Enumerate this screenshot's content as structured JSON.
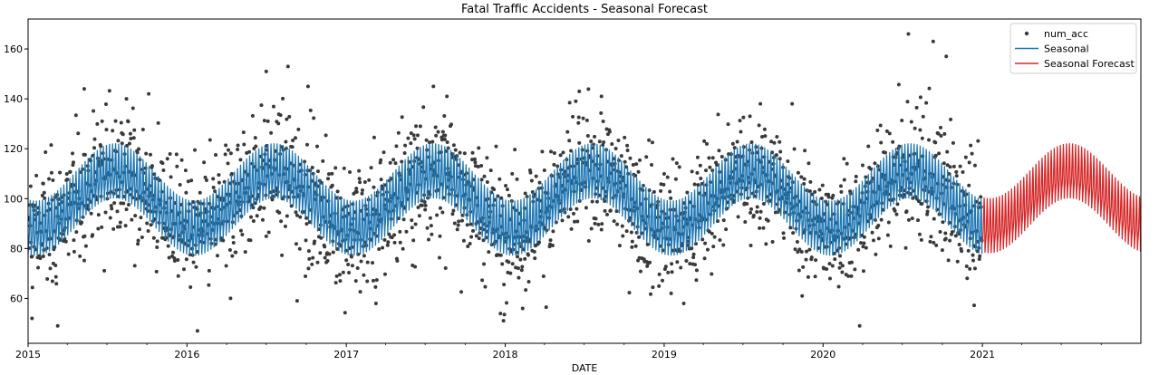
{
  "chart_data": {
    "type": "line",
    "title": "Fatal Traffic Accidents - Seasonal Forecast",
    "xlabel": "DATE",
    "ylabel": "",
    "x_range": [
      "2015-01-01",
      "2021-12-31"
    ],
    "ylim": [
      42,
      172
    ],
    "x_ticks": [
      {
        "date": "2015-01-01",
        "label": "2015"
      },
      {
        "date": "2016-01-01",
        "label": "2016"
      },
      {
        "date": "2017-01-01",
        "label": "2017"
      },
      {
        "date": "2018-01-01",
        "label": "2018"
      },
      {
        "date": "2019-01-01",
        "label": "2019"
      },
      {
        "date": "2020-01-01",
        "label": "2020"
      },
      {
        "date": "2021-01-01",
        "label": "2021"
      }
    ],
    "y_ticks": [
      60,
      80,
      100,
      120,
      140,
      160
    ],
    "grid": false,
    "legend": {
      "position": "top-right",
      "entries": [
        "num_acc",
        "Seasonal",
        "Seasonal Forecast"
      ]
    },
    "series": [
      {
        "name": "num_acc",
        "kind": "scatter",
        "color": "#3a3a3a",
        "description_points": [
          {
            "date": "2015-01-10",
            "value": 52
          },
          {
            "date": "2015-02-05",
            "value": 106
          },
          {
            "date": "2015-03-10",
            "value": 49
          },
          {
            "date": "2015-05-10",
            "value": 144
          },
          {
            "date": "2015-06-20",
            "value": 131
          },
          {
            "date": "2015-08-15",
            "value": 140
          },
          {
            "date": "2015-10-05",
            "value": 142
          },
          {
            "date": "2016-01-25",
            "value": 47
          },
          {
            "date": "2016-04-10",
            "value": 60
          },
          {
            "date": "2016-07-01",
            "value": 151
          },
          {
            "date": "2016-08-20",
            "value": 153
          },
          {
            "date": "2016-09-10",
            "value": 59
          },
          {
            "date": "2016-10-05",
            "value": 145
          },
          {
            "date": "2017-03-10",
            "value": 58
          },
          {
            "date": "2017-07-20",
            "value": 145
          },
          {
            "date": "2017-08-20",
            "value": 141
          },
          {
            "date": "2018-02-10",
            "value": 56
          },
          {
            "date": "2018-06-20",
            "value": 143
          },
          {
            "date": "2018-08-10",
            "value": 141
          },
          {
            "date": "2019-02-15",
            "value": 58
          },
          {
            "date": "2019-08-10",
            "value": 138
          },
          {
            "date": "2020-03-25",
            "value": 49
          },
          {
            "date": "2020-07-15",
            "value": 166
          },
          {
            "date": "2020-09-10",
            "value": 163
          },
          {
            "date": "2020-10-10",
            "value": 157
          },
          {
            "date": "2020-12-15",
            "value": 72
          }
        ]
      },
      {
        "name": "Seasonal",
        "kind": "line",
        "color": "#1f77b4",
        "date_range": [
          "2015-01-01",
          "2020-12-31"
        ],
        "yearly_center": {
          "jan": 85,
          "aug": 108
        },
        "weekly_swing": 14
      },
      {
        "name": "Seasonal Forecast",
        "kind": "line",
        "color": "#d62728",
        "date_range": [
          "2021-01-01",
          "2021-12-31"
        ],
        "yearly_center": {
          "jan": 86,
          "aug": 108
        },
        "weekly_swing": 14
      }
    ]
  }
}
